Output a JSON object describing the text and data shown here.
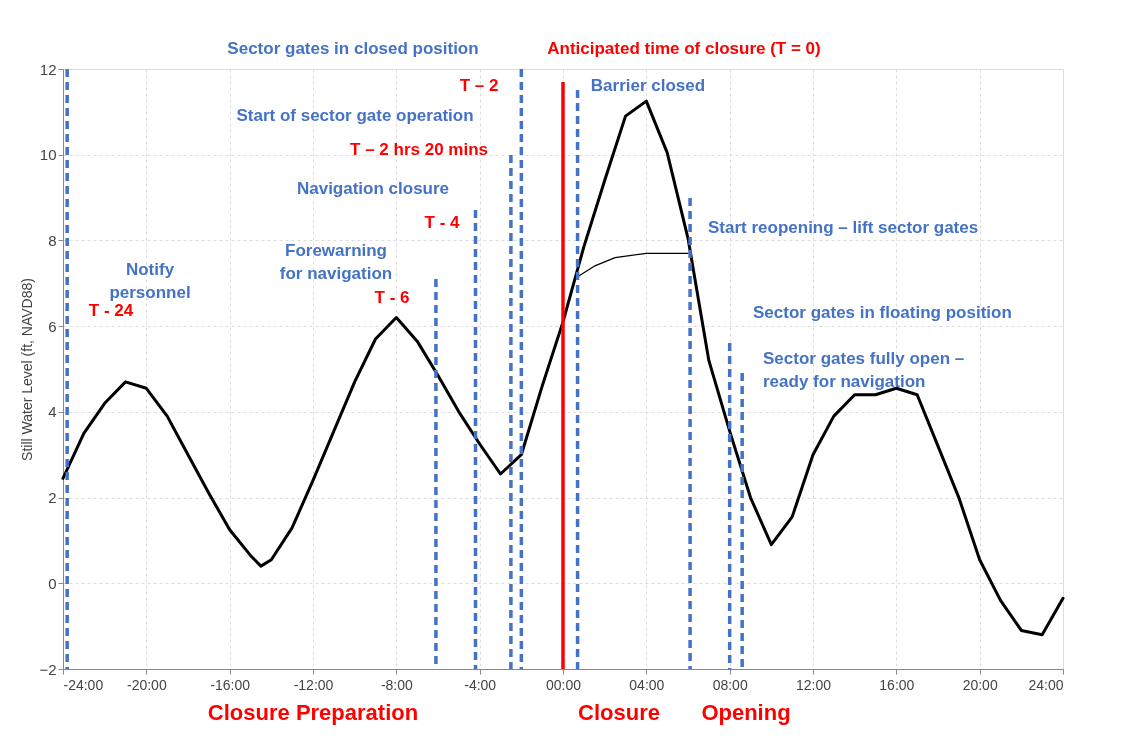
{
  "chart_data": {
    "type": "line",
    "ylabel": "Still Water Level (ft, NAVD88)",
    "xlim": [
      -24,
      24
    ],
    "ylim": [
      -2,
      12
    ],
    "xticks": [
      {
        "value": -24,
        "label": "-24:00"
      },
      {
        "value": -20,
        "label": "-20:00"
      },
      {
        "value": -16,
        "label": "-16:00"
      },
      {
        "value": -12,
        "label": "-12:00"
      },
      {
        "value": -8,
        "label": "-8:00"
      },
      {
        "value": -4,
        "label": "-4:00"
      },
      {
        "value": 0,
        "label": "00:00"
      },
      {
        "value": 4,
        "label": "04:00"
      },
      {
        "value": 8,
        "label": "08:00"
      },
      {
        "value": 12,
        "label": "12:00"
      },
      {
        "value": 16,
        "label": "16:00"
      },
      {
        "value": 20,
        "label": "20:00"
      },
      {
        "value": 24,
        "label": "24:00"
      }
    ],
    "yticks": [
      -2,
      0,
      2,
      4,
      6,
      8,
      10,
      12
    ],
    "grid": true,
    "marker": "none",
    "line_style": "solid",
    "series": [
      {
        "color": "#000000",
        "x": [
          -24,
          -23,
          -22,
          -21,
          -20,
          -19,
          -18,
          -17,
          -16,
          -15,
          -14.5,
          -14,
          -13,
          -12,
          -11,
          -10,
          -9,
          -8,
          -7,
          -6,
          -5,
          -4,
          -3,
          -2,
          -1,
          0,
          1,
          2,
          3,
          4,
          5,
          6,
          7,
          8,
          9,
          10,
          11,
          12,
          13,
          14,
          15,
          16,
          17,
          18,
          19,
          20,
          21,
          22,
          23,
          24
        ],
        "values": [
          2.45,
          3.5,
          4.2,
          4.7,
          4.55,
          3.9,
          3.0,
          2.1,
          1.25,
          0.65,
          0.4,
          0.55,
          1.3,
          2.4,
          3.55,
          4.7,
          5.7,
          6.2,
          5.65,
          4.85,
          4.0,
          3.25,
          2.55,
          3.0,
          4.6,
          6.1,
          7.85,
          9.4,
          10.9,
          11.25,
          10.05,
          8.05,
          5.2,
          3.55,
          2.0,
          0.9,
          1.55,
          3.0,
          3.9,
          4.4,
          4.4,
          4.55,
          4.4,
          3.2,
          2.0,
          0.55,
          -0.4,
          -1.1,
          -1.2,
          -0.35
        ]
      },
      {
        "color": "#000000",
        "x": [
          0.7,
          1.5,
          2.5,
          4,
          6
        ],
        "values": [
          7.15,
          7.4,
          7.6,
          7.7,
          7.7
        ]
      }
    ],
    "ref_lines": [
      {
        "axis": "x",
        "value": -23.8,
        "color": "#4472c4",
        "line_style": "dashed"
      },
      {
        "axis": "x",
        "value": -6.1,
        "color": "#4472c4",
        "line_style": "dashed"
      },
      {
        "axis": "x",
        "value": -4.2,
        "color": "#4472c4",
        "line_style": "dashed"
      },
      {
        "axis": "x",
        "value": -2.5,
        "color": "#4472c4",
        "line_style": "dashed"
      },
      {
        "axis": "x",
        "value": -2.0,
        "color": "#4472c4",
        "line_style": "dashed"
      },
      {
        "axis": "x",
        "value": 0,
        "color": "#ff0000",
        "line_style": "solid"
      },
      {
        "axis": "x",
        "value": 0.7,
        "color": "#4472c4",
        "line_style": "dashed"
      },
      {
        "axis": "x",
        "value": 6.1,
        "color": "#4472c4",
        "line_style": "dashed"
      },
      {
        "axis": "x",
        "value": 8.0,
        "color": "#4472c4",
        "line_style": "dashed"
      },
      {
        "axis": "x",
        "value": 8.6,
        "color": "#4472c4",
        "line_style": "dashed"
      }
    ],
    "annotations": [
      "Notify\npersonnel",
      "T - 24",
      "Forewarning\nfor navigation",
      "T - 6",
      "Navigation closure",
      "T - 4",
      "Start of sector gate operation",
      "T – 2 hrs 20 mins",
      "T – 2",
      "Sector gates in closed position",
      "Anticipated time of closure (T = 0)",
      "Barrier closed",
      "Start reopening – lift sector gates",
      "Sector gates in floating position",
      "Sector gates fully open –\nready for navigation",
      "Closure Preparation",
      "Closure",
      "Opening"
    ]
  }
}
